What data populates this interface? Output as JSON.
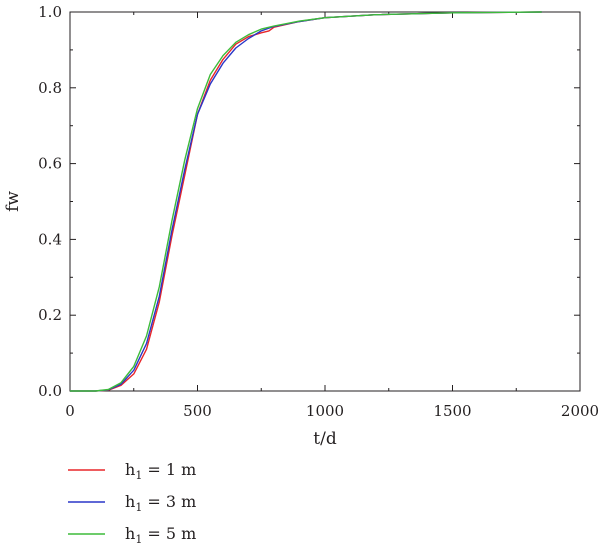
{
  "chart_data": {
    "type": "line",
    "xlabel": "t/d",
    "ylabel": "fw",
    "xlim": [
      0,
      2000
    ],
    "ylim": [
      0,
      1.0
    ],
    "x_ticks": [
      "0",
      "500",
      "1000",
      "1500",
      "2000"
    ],
    "y_ticks": [
      "0.0",
      "0.2",
      "0.4",
      "0.6",
      "0.8",
      "1.0"
    ],
    "grid": false,
    "legend_position": "bottom-left",
    "series": [
      {
        "name": "h1 = 1 m",
        "legend_main": "h",
        "legend_sub": "1",
        "legend_rest": " = 1 m",
        "color": "#e8262a",
        "points": [
          [
            0,
            0
          ],
          [
            100,
            0
          ],
          [
            150,
            0.002
          ],
          [
            200,
            0.015
          ],
          [
            250,
            0.045
          ],
          [
            300,
            0.11
          ],
          [
            350,
            0.235
          ],
          [
            400,
            0.41
          ],
          [
            450,
            0.57
          ],
          [
            500,
            0.73
          ],
          [
            550,
            0.82
          ],
          [
            600,
            0.875
          ],
          [
            650,
            0.915
          ],
          [
            700,
            0.935
          ],
          [
            750,
            0.945
          ],
          [
            780,
            0.95
          ],
          [
            800,
            0.96
          ],
          [
            900,
            0.975
          ],
          [
            1000,
            0.985
          ],
          [
            1200,
            0.993
          ],
          [
            1500,
            0.998
          ],
          [
            1850,
            1.0
          ]
        ]
      },
      {
        "name": "h1 = 3 m",
        "legend_main": "h",
        "legend_sub": "1",
        "legend_rest": " = 3 m",
        "color": "#2a37c8",
        "points": [
          [
            0,
            0
          ],
          [
            100,
            0
          ],
          [
            150,
            0.003
          ],
          [
            200,
            0.018
          ],
          [
            250,
            0.055
          ],
          [
            300,
            0.125
          ],
          [
            350,
            0.25
          ],
          [
            400,
            0.425
          ],
          [
            450,
            0.585
          ],
          [
            500,
            0.73
          ],
          [
            550,
            0.81
          ],
          [
            600,
            0.865
          ],
          [
            650,
            0.905
          ],
          [
            700,
            0.93
          ],
          [
            750,
            0.95
          ],
          [
            800,
            0.962
          ],
          [
            900,
            0.975
          ],
          [
            1000,
            0.985
          ],
          [
            1200,
            0.993
          ],
          [
            1500,
            0.998
          ],
          [
            1850,
            1.0
          ]
        ]
      },
      {
        "name": "h1 = 5 m",
        "legend_main": "h",
        "legend_sub": "1",
        "legend_rest": " = 5 m",
        "color": "#3dbb3a",
        "points": [
          [
            0,
            0
          ],
          [
            100,
            0
          ],
          [
            150,
            0.004
          ],
          [
            200,
            0.022
          ],
          [
            250,
            0.065
          ],
          [
            300,
            0.145
          ],
          [
            350,
            0.275
          ],
          [
            400,
            0.45
          ],
          [
            450,
            0.61
          ],
          [
            500,
            0.745
          ],
          [
            550,
            0.835
          ],
          [
            600,
            0.885
          ],
          [
            650,
            0.92
          ],
          [
            700,
            0.94
          ],
          [
            750,
            0.955
          ],
          [
            800,
            0.963
          ],
          [
            900,
            0.976
          ],
          [
            1000,
            0.985
          ],
          [
            1200,
            0.993
          ],
          [
            1500,
            0.998
          ],
          [
            1850,
            1.0
          ]
        ]
      }
    ]
  }
}
